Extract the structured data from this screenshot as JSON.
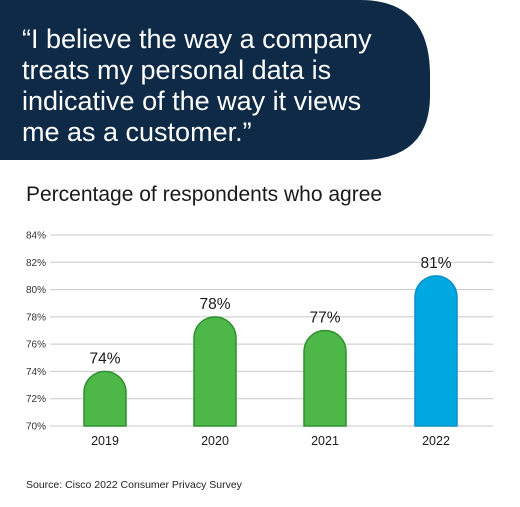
{
  "quote": "“I believe the way a company\n treats my personal data is\n indicative of the way it views\n me as a customer.”",
  "chart_data": {
    "type": "bar",
    "title": "Percentage of respondents who agree",
    "categories": [
      "2019",
      "2020",
      "2021",
      "2022"
    ],
    "values": [
      74,
      78,
      77,
      81
    ],
    "data_labels": [
      "74%",
      "78%",
      "77%",
      "81%"
    ],
    "ylim": [
      70,
      84
    ],
    "yticks": [
      70,
      72,
      74,
      76,
      78,
      80,
      82,
      84
    ],
    "ytick_labels": [
      "70%",
      "72%",
      "74%",
      "76%",
      "78%",
      "80%",
      "82%",
      "84%"
    ],
    "grid": true,
    "colors": [
      "#4db848",
      "#4db848",
      "#4db848",
      "#00a8e1"
    ],
    "outline_colors": [
      "#2f8f2e",
      "#2f8f2e",
      "#2f8f2e",
      "#0a8fc6"
    ]
  },
  "source": "Source: Cisco 2022 Consumer Privacy Survey",
  "colors": {
    "banner": "#0e2a47",
    "grid": "#c8c8c8"
  }
}
